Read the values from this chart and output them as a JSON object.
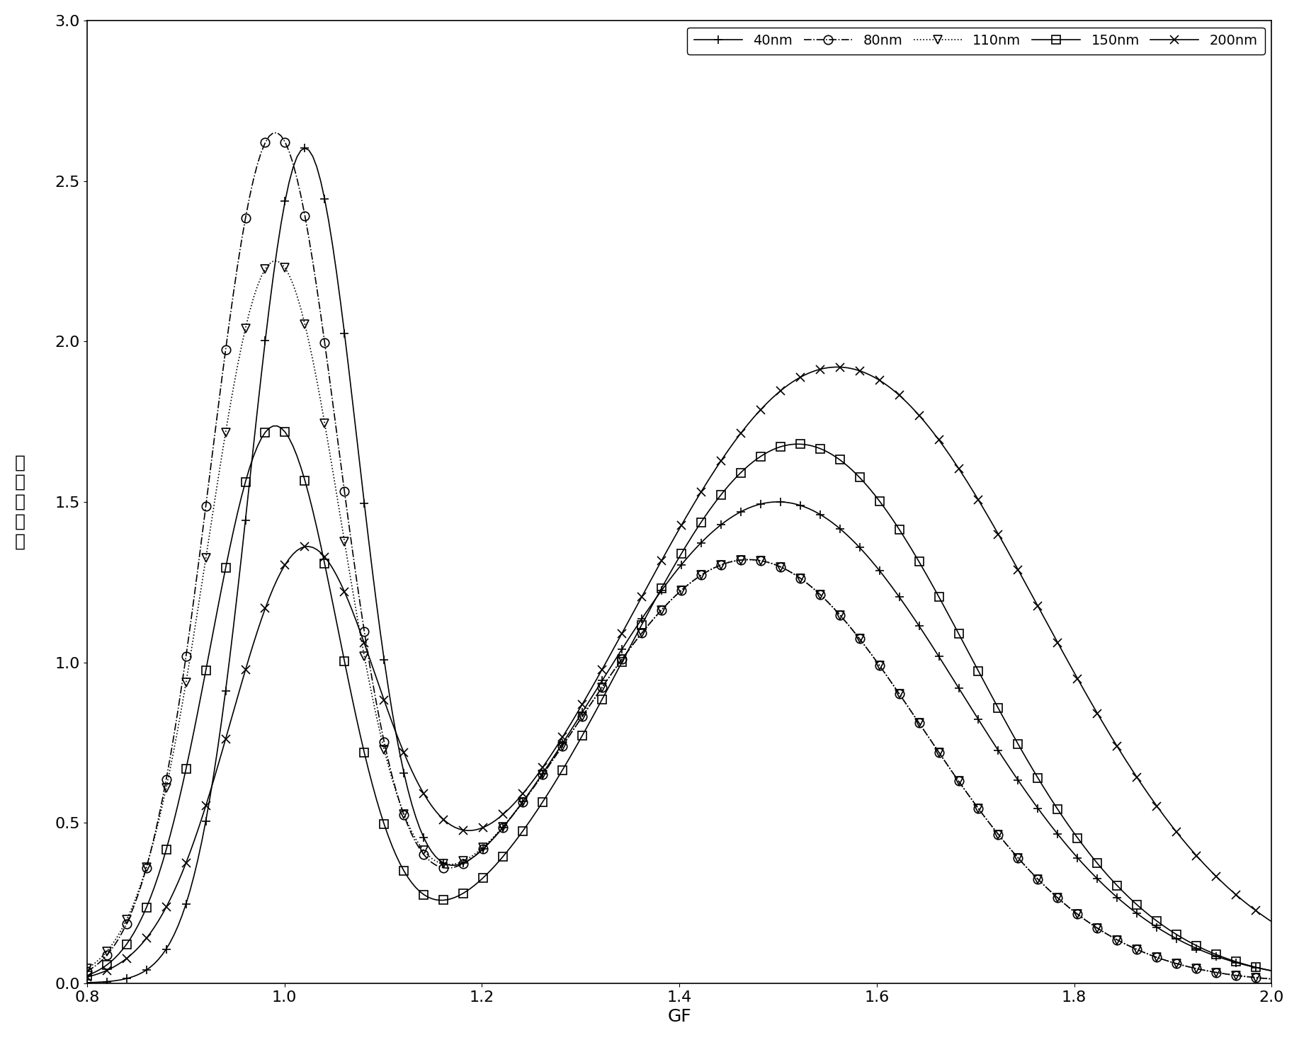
{
  "xlabel": "GF",
  "ylabel_chars": [
    "归",
    "一",
    "化",
    "浓",
    "度"
  ],
  "xlim": [
    0.8,
    2.0
  ],
  "ylim": [
    0.0,
    3.0
  ],
  "xticks": [
    0.8,
    1.0,
    1.2,
    1.4,
    1.6,
    1.8,
    2.0
  ],
  "yticks": [
    0.0,
    0.5,
    1.0,
    1.5,
    2.0,
    2.5,
    3.0
  ],
  "series": [
    {
      "label": "40nm",
      "marker": "+",
      "linestyle": "-",
      "p1c": 1.02,
      "p1h": 2.55,
      "p1w": 0.055,
      "p2c": 1.5,
      "p2h": 1.5,
      "p2w": 0.185
    },
    {
      "label": "80nm",
      "marker": "o",
      "linestyle": "-.",
      "p1c": 0.99,
      "p1h": 2.62,
      "p1w": 0.065,
      "p2c": 1.47,
      "p2h": 1.32,
      "p2w": 0.175
    },
    {
      "label": "110nm",
      "marker": "v",
      "linestyle": ":",
      "p1c": 0.99,
      "p1h": 2.22,
      "p1w": 0.068,
      "p2c": 1.47,
      "p2h": 1.32,
      "p2w": 0.175
    },
    {
      "label": "150nm",
      "marker": "s",
      "linestyle": "-",
      "p1c": 0.99,
      "p1h": 1.72,
      "p1w": 0.065,
      "p2c": 1.52,
      "p2h": 1.68,
      "p2w": 0.175
    },
    {
      "label": "200nm",
      "marker": "x",
      "linestyle": "-",
      "p1c": 1.02,
      "p1h": 1.3,
      "p1w": 0.075,
      "p2c": 1.56,
      "p2h": 1.92,
      "p2w": 0.205
    }
  ],
  "legend_fontsize": 14,
  "axis_fontsize": 18,
  "tick_fontsize": 16,
  "background_color": "#ffffff",
  "marker_every": 5,
  "n_points": 300
}
